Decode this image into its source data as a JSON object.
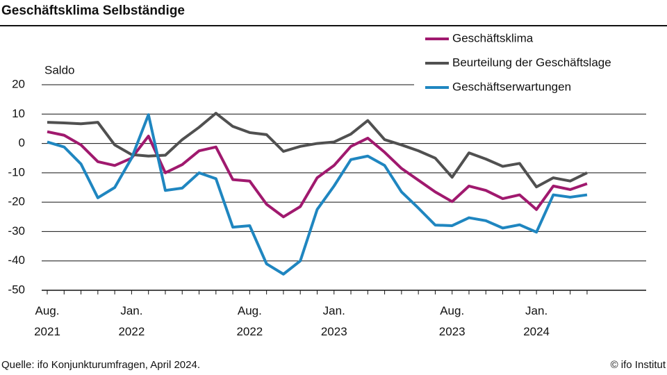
{
  "chart_data": {
    "type": "line",
    "title": "Geschäftsklima Selbständige",
    "y_axis_label": "Saldo",
    "source": "Quelle: ifo Konjunkturumfragen, April 2024.",
    "copyright": "© ifo Institut",
    "categories": [
      "Aug. 2021",
      null,
      null,
      null,
      null,
      "Jan. 2022",
      null,
      null,
      null,
      null,
      null,
      null,
      "Aug. 2022",
      null,
      null,
      null,
      null,
      "Jan. 2023",
      null,
      null,
      null,
      null,
      null,
      null,
      "Aug. 2023",
      null,
      null,
      null,
      null,
      "Jan. 2024",
      null,
      null,
      null
    ],
    "series": [
      {
        "name": "Geschäftsklima",
        "color": "#a0196e",
        "values": [
          4,
          2.8,
          -0.5,
          -6.2,
          -7.5,
          -5,
          2.5,
          -10,
          -7.2,
          -2.5,
          -1.2,
          -12.3,
          -12.8,
          -20.7,
          -25,
          -21.5,
          -11.7,
          -7.5,
          -1,
          1.8,
          -3,
          -8.5,
          -12.5,
          -16.5,
          -19.8,
          -14.5,
          -16,
          -18.8,
          -17.5,
          -22.5,
          -14.5,
          -15.7,
          -13.7
        ]
      },
      {
        "name": "Beurteilung der Geschäftslage",
        "color": "#505050",
        "values": [
          7.2,
          7,
          6.7,
          7.2,
          -0.5,
          -3.8,
          -4.3,
          -4,
          1.3,
          5.5,
          10.3,
          5.8,
          3.7,
          3,
          -2.7,
          -1,
          0,
          0.5,
          3.2,
          7.8,
          1.3,
          -0.5,
          -2.5,
          -5,
          -11.5,
          -3.2,
          -5.3,
          -7.8,
          -6.8,
          -14.8,
          -11.7,
          -12.8,
          -10
        ]
      },
      {
        "name": "Geschäftserwartungen",
        "color": "#1f86c0",
        "values": [
          0.5,
          -1.2,
          -7,
          -18.5,
          -15,
          -5,
          9.8,
          -16,
          -15.2,
          -10,
          -12,
          -28.5,
          -28,
          -41,
          -44.5,
          -40,
          -22.5,
          -14.5,
          -5.5,
          -4.3,
          -7.5,
          -16.5,
          -22,
          -27.8,
          -28,
          -25.3,
          -26.3,
          -28.8,
          -27.7,
          -30.2,
          -17.5,
          -18.3,
          -17.5
        ]
      }
    ],
    "ylim": [
      -50,
      20
    ],
    "yticks": [
      -50,
      -40,
      -30,
      -20,
      -10,
      0,
      10,
      20
    ],
    "grid": true
  }
}
